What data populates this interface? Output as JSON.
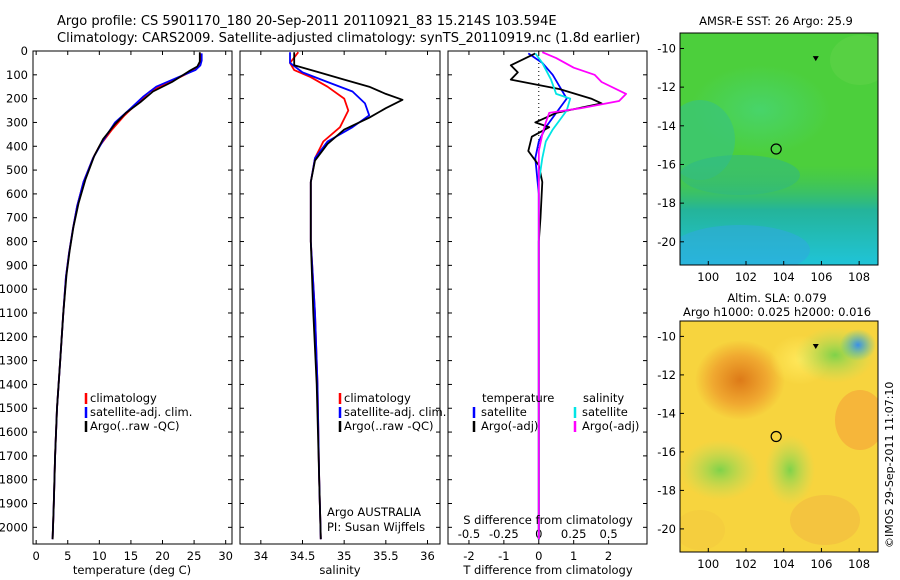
{
  "header": {
    "line1": "Argo profile: CS 5901170_180 20-Sep-2011 20110921_83 15.214S 103.594E",
    "line2": "Climatology: CARS2009. Satellite-adjusted climatology: synTS_20110919.nc (1.8d earlier)"
  },
  "colors": {
    "climatology": "#ff0000",
    "satellite": "#0000ff",
    "argo": "#000000",
    "salinity_satellite": "#00e5e5",
    "salinity_argo": "#ff00ff"
  },
  "legend_profile": {
    "items": [
      "climatology",
      "satellite-adj. clim.",
      "Argo(..raw -QC)"
    ]
  },
  "legend_diff": {
    "temperature_header": "temperature",
    "salinity_header": "salinity",
    "satellite": "satellite",
    "argo": "Argo(-adj)"
  },
  "credits": {
    "program": "Argo AUSTRALIA",
    "pi": "PI: Susan Wijffels",
    "stamp": "©IMOS 29-Sep-2011 11:07:10"
  },
  "map_top": {
    "title": "AMSR-E SST: 26 Argo: 25.9",
    "xticks": [
      "100",
      "102",
      "104",
      "106",
      "108"
    ],
    "yticks": [
      "-10",
      "-12",
      "-14",
      "-16",
      "-18",
      "-20"
    ]
  },
  "map_bottom": {
    "title1": "Altim. SLA: 0.079",
    "title2": "Argo h1000: 0.025 h2000: 0.016",
    "xticks": [
      "100",
      "102",
      "104",
      "106",
      "108"
    ],
    "yticks": [
      "-10",
      "-12",
      "-14",
      "-16",
      "-18",
      "-20"
    ]
  },
  "chart_data": [
    {
      "type": "line",
      "xlabel": "temperature (deg C)",
      "ylabel": "",
      "xlim": [
        -0.5,
        31
      ],
      "ylim": [
        2070,
        0
      ],
      "xticks": [
        0,
        5,
        10,
        15,
        20,
        25,
        30
      ],
      "yticks": [
        0,
        100,
        200,
        300,
        400,
        500,
        600,
        700,
        800,
        900,
        1000,
        1100,
        1200,
        1300,
        1400,
        1500,
        1600,
        1700,
        1800,
        1900,
        2000
      ],
      "series": [
        {
          "name": "climatology",
          "points": [
            [
              26,
              10
            ],
            [
              26,
              40
            ],
            [
              25.8,
              60
            ],
            [
              25,
              80
            ],
            [
              22,
              120
            ],
            [
              18,
              170
            ],
            [
              16,
              220
            ],
            [
              14,
              270
            ],
            [
              12,
              330
            ],
            [
              10,
              400
            ],
            [
              9,
              450
            ],
            [
              7.5,
              550
            ],
            [
              6.5,
              650
            ],
            [
              5.8,
              750
            ],
            [
              5.2,
              850
            ],
            [
              4.7,
              950
            ],
            [
              4.3,
              1100
            ],
            [
              3.8,
              1300
            ],
            [
              3.3,
              1500
            ],
            [
              3,
              1700
            ],
            [
              2.8,
              1900
            ],
            [
              2.6,
              2050
            ]
          ]
        },
        {
          "name": "satellite-adj. clim.",
          "points": [
            [
              26.2,
              10
            ],
            [
              26.2,
              40
            ],
            [
              26,
              60
            ],
            [
              25.2,
              80
            ],
            [
              22.5,
              110
            ],
            [
              19,
              150
            ],
            [
              17,
              190
            ],
            [
              15,
              240
            ],
            [
              12.5,
              300
            ],
            [
              10.5,
              380
            ],
            [
              9,
              450
            ],
            [
              7.5,
              550
            ],
            [
              6.5,
              650
            ],
            [
              5.8,
              750
            ],
            [
              5.2,
              850
            ],
            [
              4.7,
              950
            ],
            [
              4.3,
              1100
            ],
            [
              3.8,
              1300
            ],
            [
              3.3,
              1500
            ],
            [
              3,
              1700
            ],
            [
              2.8,
              1900
            ],
            [
              2.6,
              2050
            ]
          ]
        },
        {
          "name": "Argo(..raw -QC)",
          "points": [
            [
              25.9,
              5
            ],
            [
              25.9,
              45
            ],
            [
              25.5,
              65
            ],
            [
              24.2,
              85
            ],
            [
              21.5,
              130
            ],
            [
              18.5,
              170
            ],
            [
              16.5,
              215
            ],
            [
              14.2,
              260
            ],
            [
              12.4,
              310
            ],
            [
              10.6,
              370
            ],
            [
              9.2,
              440
            ],
            [
              7.8,
              540
            ],
            [
              6.7,
              640
            ],
            [
              5.9,
              740
            ],
            [
              5.3,
              840
            ],
            [
              4.8,
              940
            ],
            [
              4.3,
              1100
            ],
            [
              3.8,
              1300
            ],
            [
              3.3,
              1500
            ],
            [
              3,
              1700
            ],
            [
              2.8,
              1900
            ],
            [
              2.6,
              2050
            ]
          ]
        }
      ]
    },
    {
      "type": "line",
      "xlabel": "salinity",
      "ylabel": "",
      "xlim": [
        33.75,
        36.15
      ],
      "ylim": [
        2070,
        0
      ],
      "xticks": [
        34,
        34.5,
        35,
        35.5,
        36
      ],
      "series": [
        {
          "name": "climatology",
          "points": [
            [
              34.45,
              5
            ],
            [
              34.35,
              50
            ],
            [
              34.4,
              80
            ],
            [
              34.6,
              110
            ],
            [
              34.8,
              150
            ],
            [
              35,
              200
            ],
            [
              35.05,
              250
            ],
            [
              34.95,
              320
            ],
            [
              34.75,
              380
            ],
            [
              34.65,
              450
            ],
            [
              34.6,
              550
            ],
            [
              34.6,
              800
            ],
            [
              34.65,
              1100
            ],
            [
              34.68,
              1400
            ],
            [
              34.7,
              1800
            ],
            [
              34.72,
              2050
            ]
          ]
        },
        {
          "name": "satellite-adj. clim.",
          "points": [
            [
              34.35,
              5
            ],
            [
              34.35,
              50
            ],
            [
              34.5,
              90
            ],
            [
              34.8,
              130
            ],
            [
              35.1,
              170
            ],
            [
              35.25,
              220
            ],
            [
              35.3,
              270
            ],
            [
              35.1,
              320
            ],
            [
              34.8,
              380
            ],
            [
              34.65,
              450
            ],
            [
              34.6,
              550
            ],
            [
              34.6,
              800
            ],
            [
              34.65,
              1100
            ],
            [
              34.68,
              1400
            ],
            [
              34.7,
              1800
            ],
            [
              34.72,
              2050
            ]
          ]
        },
        {
          "name": "Argo(..raw -QC)",
          "points": [
            [
              34.4,
              5
            ],
            [
              34.4,
              60
            ],
            [
              34.7,
              90
            ],
            [
              35,
              120
            ],
            [
              35.3,
              150
            ],
            [
              35.5,
              180
            ],
            [
              35.7,
              205
            ],
            [
              35.5,
              240
            ],
            [
              35.3,
              280
            ],
            [
              35,
              330
            ],
            [
              34.8,
              390
            ],
            [
              34.65,
              460
            ],
            [
              34.6,
              550
            ],
            [
              34.6,
              800
            ],
            [
              34.63,
              1100
            ],
            [
              34.67,
              1400
            ],
            [
              34.7,
              1800
            ],
            [
              34.72,
              2050
            ]
          ]
        }
      ]
    },
    {
      "type": "line",
      "xlabel": "T difference from climatology",
      "xlabel_top": "S difference from climatology",
      "xlim": [
        -2.6,
        3.1
      ],
      "ylim": [
        2070,
        0
      ],
      "xticks": [
        -2,
        -1,
        0,
        1,
        2
      ],
      "xticks_top": [
        -0.5,
        -0.25,
        0,
        0.25,
        0.5
      ],
      "series": [
        {
          "name": "temperature satellite",
          "points": [
            [
              -0.3,
              10
            ],
            [
              0.1,
              50
            ],
            [
              0.4,
              100
            ],
            [
              0.6,
              150
            ],
            [
              0.8,
              200
            ],
            [
              0.5,
              260
            ],
            [
              0.2,
              320
            ],
            [
              0,
              380
            ],
            [
              -0.1,
              450
            ],
            [
              0,
              600
            ],
            [
              0,
              800
            ],
            [
              0,
              1200
            ],
            [
              0,
              2050
            ]
          ]
        },
        {
          "name": "temperature Argo(-adj)",
          "points": [
            [
              -0.1,
              10
            ],
            [
              -0.8,
              60
            ],
            [
              -0.6,
              90
            ],
            [
              -0.8,
              120
            ],
            [
              0.6,
              160
            ],
            [
              1.5,
              200
            ],
            [
              1.8,
              220
            ],
            [
              0.5,
              260
            ],
            [
              -0.1,
              300
            ],
            [
              0.3,
              320
            ],
            [
              -0.2,
              360
            ],
            [
              -0.3,
              420
            ],
            [
              0,
              480
            ],
            [
              0.1,
              550
            ],
            [
              0.05,
              700
            ],
            [
              0,
              800
            ],
            [
              0,
              2050
            ]
          ]
        },
        {
          "name": "salinity satellite",
          "points": [
            [
              -0.1,
              10
            ],
            [
              0.1,
              50
            ],
            [
              0.35,
              120
            ],
            [
              0.5,
              180
            ],
            [
              0.9,
              200
            ],
            [
              0.8,
              250
            ],
            [
              0.6,
              290
            ],
            [
              0.4,
              330
            ],
            [
              0.2,
              380
            ],
            [
              0.1,
              450
            ],
            [
              0,
              550
            ],
            [
              0,
              800
            ],
            [
              0,
              2050
            ]
          ]
        },
        {
          "name": "salinity Argo(-adj)",
          "points": [
            [
              0.1,
              5
            ],
            [
              0.5,
              30
            ],
            [
              1,
              70
            ],
            [
              1.6,
              100
            ],
            [
              1.8,
              130
            ],
            [
              2.5,
              180
            ],
            [
              2.3,
              210
            ],
            [
              1.2,
              240
            ],
            [
              0.3,
              260
            ],
            [
              0.2,
              300
            ],
            [
              0.1,
              350
            ],
            [
              0,
              420
            ],
            [
              0,
              600
            ],
            [
              0,
              2050
            ]
          ]
        }
      ]
    },
    {
      "type": "heatmap",
      "title": "AMSR-E SST: 26 Argo: 25.9",
      "xlim": [
        98.5,
        109
      ],
      "ylim": [
        -21.2,
        -9.2
      ],
      "argo_position": [
        103.6,
        -15.2
      ],
      "marker": [
        105.7,
        -10.5
      ]
    },
    {
      "type": "heatmap",
      "title": "Altim. SLA: 0.079",
      "subtitle": "Argo h1000: 0.025 h2000: 0.016",
      "xlim": [
        98.5,
        109
      ],
      "ylim": [
        -21.2,
        -9.2
      ],
      "argo_position": [
        103.6,
        -15.2
      ],
      "marker": [
        105.7,
        -10.5
      ]
    }
  ]
}
